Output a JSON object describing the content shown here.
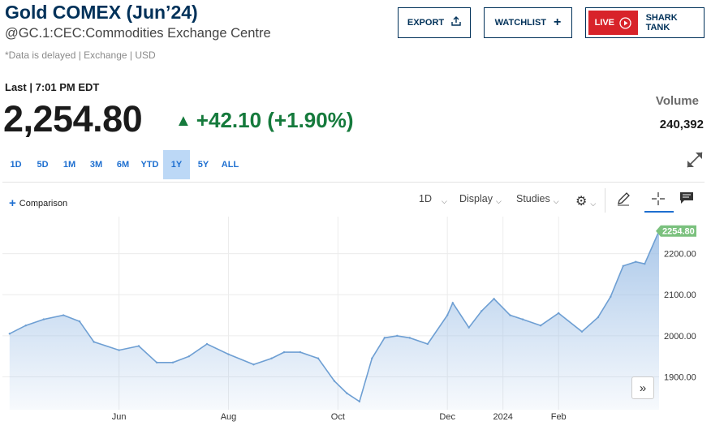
{
  "header": {
    "title": "Gold COMEX (Jun’24)",
    "subtitle": "@GC.1:CEC:Commodities Exchange Centre",
    "delay_note": "*Data is delayed | Exchange | USD"
  },
  "buttons": {
    "export": "EXPORT",
    "watchlist": "WATCHLIST",
    "live": "LIVE",
    "shark_tank": "SHARK TANK"
  },
  "quote": {
    "last_time": "Last | 7:01 PM EDT",
    "price": "2,254.80",
    "change": "+42.10 (+1.90%)",
    "volume_label": "Volume",
    "volume": "240,392"
  },
  "ranges": [
    "1D",
    "5D",
    "1M",
    "3M",
    "6M",
    "YTD",
    "1Y",
    "5Y",
    "ALL"
  ],
  "selected_range": "1Y",
  "toolbar": {
    "comparison": "Comparison",
    "interval": "1D",
    "display": "Display",
    "studies": "Studies"
  },
  "colors": {
    "brand": "#003159",
    "positive": "#157a3c",
    "line": "#6e9fd3",
    "live_red": "#d8232a",
    "last_price_tag": "#7bc17e"
  },
  "chart_data": {
    "type": "area",
    "x_tick_labels": [
      "Jun",
      "Aug",
      "Oct",
      "Dec",
      "2024",
      "Feb"
    ],
    "y_tick_labels": [
      "1900.00",
      "2000.00",
      "2100.00",
      "2200.00"
    ],
    "ylim": [
      1820,
      2290
    ],
    "last_value_label": "2254.80",
    "grid": true,
    "x": [
      "2023-04-01",
      "2023-04-10",
      "2023-04-20",
      "2023-05-01",
      "2023-05-10",
      "2023-05-18",
      "2023-06-01",
      "2023-06-12",
      "2023-06-22",
      "2023-07-01",
      "2023-07-10",
      "2023-07-20",
      "2023-08-01",
      "2023-08-15",
      "2023-08-25",
      "2023-09-01",
      "2023-09-10",
      "2023-09-20",
      "2023-09-29",
      "2023-10-06",
      "2023-10-13",
      "2023-10-20",
      "2023-10-27",
      "2023-11-03",
      "2023-11-10",
      "2023-11-20",
      "2023-12-01",
      "2023-12-04",
      "2023-12-13",
      "2023-12-20",
      "2023-12-27",
      "2024-01-05",
      "2024-01-12",
      "2024-01-22",
      "2024-02-01",
      "2024-02-14",
      "2024-02-23",
      "2024-03-01",
      "2024-03-08",
      "2024-03-15",
      "2024-03-20",
      "2024-03-28"
    ],
    "values": [
      2005,
      2025,
      2040,
      2050,
      2035,
      1985,
      1965,
      1975,
      1935,
      1935,
      1950,
      1980,
      1955,
      1930,
      1945,
      1960,
      1960,
      1945,
      1890,
      1860,
      1840,
      1945,
      1995,
      2000,
      1995,
      1980,
      2050,
      2080,
      2020,
      2060,
      2090,
      2050,
      2040,
      2025,
      2055,
      2010,
      2045,
      2095,
      2170,
      2180,
      2175,
      2255
    ]
  }
}
